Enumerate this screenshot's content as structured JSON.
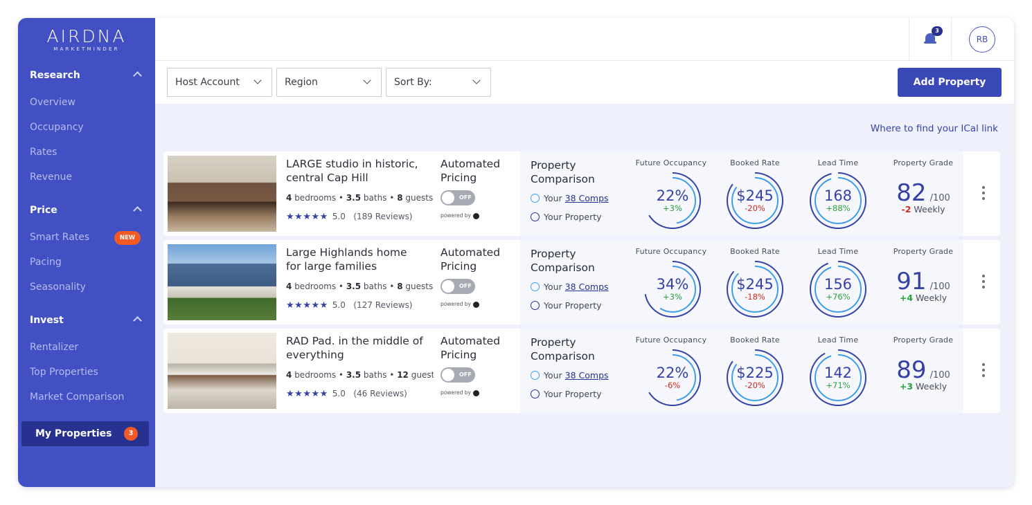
{
  "brand": {
    "name": "AIRDNA",
    "sub": "MARKETMINDER"
  },
  "sidebar": {
    "sections": [
      {
        "title": "Research",
        "items": [
          "Overview",
          "Occupancy",
          "Rates",
          "Revenue"
        ]
      },
      {
        "title": "Price",
        "items": [
          "Smart Rates",
          "Pacing",
          "Seasonality"
        ],
        "new_badge": "NEW"
      },
      {
        "title": "Invest",
        "items": [
          "Rentalizer",
          "Top Properties",
          "Market Comparison"
        ]
      }
    ],
    "active": {
      "label": "My Properties",
      "count": "3"
    }
  },
  "header": {
    "notifications": "3",
    "avatar": "RB"
  },
  "filters": {
    "host": "Host Account",
    "region": "Region",
    "sort": "Sort By:",
    "add": "Add Property"
  },
  "ical_link": "Where to find your ICal link",
  "common": {
    "automated": "Automated",
    "pricing": "Pricing",
    "toggle_off": "OFF",
    "powered_by": "powered by",
    "comparison_1": "Property",
    "comparison_2": "Comparison",
    "your": "Your",
    "comps": "38 Comps",
    "your_property": "Your Property",
    "metric_labels": [
      "Future Occupancy",
      "Booked Rate",
      "Lead Time",
      "Property Grade"
    ],
    "out_of": "/100",
    "weekly": "Weekly",
    "bedrooms": "bedrooms",
    "baths": "baths",
    "guests": "guests",
    "stars": "★★★★★"
  },
  "properties": [
    {
      "title1": "LARGE studio in historic,",
      "title2": "central Cap Hill",
      "bedrooms": "4",
      "baths": "3.5",
      "guests": "8",
      "rating": "5.0",
      "reviews": "(189 Reviews)",
      "occupancy": "22%",
      "occupancy_chg": "+3%",
      "occupancy_pct": 0.22,
      "rate": "$245",
      "rate_chg": "-20%",
      "rate_pct": 0.6,
      "lead": "168",
      "lead_chg": "+88%",
      "lead_pct": 0.82,
      "grade": "82",
      "grade_chg": "-2"
    },
    {
      "title1": "Large Highlands home",
      "title2": "for large families",
      "bedrooms": "4",
      "baths": "3.5",
      "guests": "8",
      "rating": "5.0",
      "reviews": "(127 Reviews)",
      "occupancy": "34%",
      "occupancy_chg": "+3%",
      "occupancy_pct": 0.34,
      "rate": "$245",
      "rate_chg": "-18%",
      "rate_pct": 0.62,
      "lead": "156",
      "lead_chg": "+76%",
      "lead_pct": 0.78,
      "grade": "91",
      "grade_chg": "+4"
    },
    {
      "title1": "RAD Pad. in the middle of",
      "title2": "everything",
      "bedrooms": "4",
      "baths": "3.5",
      "guests": "12",
      "rating": "5.0",
      "reviews": "(46 Reviews)",
      "occupancy": "22%",
      "occupancy_chg": "-6%",
      "occupancy_pct": 0.22,
      "rate": "$225",
      "rate_chg": "-20%",
      "rate_pct": 0.6,
      "lead": "142",
      "lead_chg": "+71%",
      "lead_pct": 0.74,
      "grade": "89",
      "grade_chg": "+3"
    }
  ]
}
